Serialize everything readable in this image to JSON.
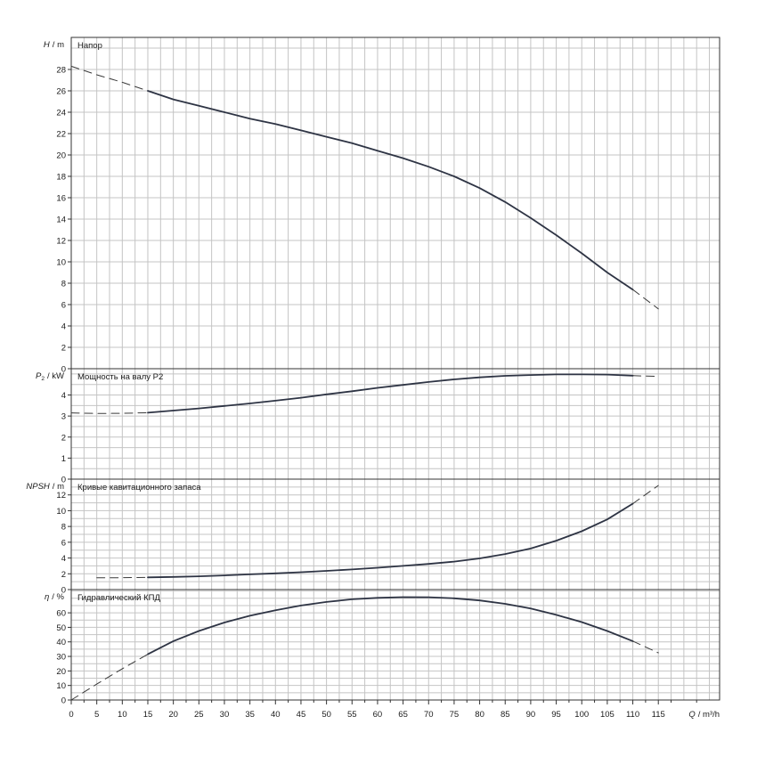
{
  "chart_data": [
    {
      "type": "line",
      "title": "Напор",
      "ylabel_symbol": "H",
      "ylabel_unit": "/ m",
      "ylim": [
        0,
        31
      ],
      "yticks": [
        "0",
        "2",
        "4",
        "6",
        "8",
        "10",
        "12",
        "14",
        "16",
        "18",
        "20",
        "22",
        "24",
        "26",
        "28"
      ],
      "ytick_values": [
        0,
        2,
        4,
        6,
        8,
        10,
        12,
        14,
        16,
        18,
        20,
        22,
        24,
        26,
        28
      ],
      "grid": true,
      "series": [
        {
          "style": "dashed",
          "x": [
            0,
            5,
            10,
            15
          ],
          "y": [
            28.3,
            27.5,
            26.8,
            26.0
          ]
        },
        {
          "style": "solid",
          "x": [
            15,
            20,
            25,
            30,
            35,
            40,
            45,
            50,
            55,
            60,
            65,
            70,
            75,
            80,
            85,
            90,
            95,
            100,
            105,
            110
          ],
          "y": [
            26.0,
            25.2,
            24.6,
            24.0,
            23.4,
            22.9,
            22.3,
            21.7,
            21.1,
            20.4,
            19.7,
            18.9,
            18.0,
            16.9,
            15.6,
            14.1,
            12.5,
            10.8,
            9.0,
            7.4
          ]
        },
        {
          "style": "dashed",
          "x": [
            110,
            115
          ],
          "y": [
            7.4,
            5.6
          ]
        }
      ]
    },
    {
      "type": "line",
      "title": "Мощность на валу P2",
      "ylabel_symbol": "P",
      "ylabel_subscript": "2",
      "ylabel_unit": "/ kW",
      "ylim": [
        0,
        5.25
      ],
      "yticks": [
        "0",
        "1",
        "2",
        "3",
        "4"
      ],
      "ytick_values": [
        0,
        1,
        2,
        3,
        4
      ],
      "grid": true,
      "series": [
        {
          "style": "dashed",
          "x": [
            0,
            5,
            10,
            15
          ],
          "y": [
            3.15,
            3.12,
            3.13,
            3.16
          ]
        },
        {
          "style": "solid",
          "x": [
            15,
            20,
            25,
            30,
            35,
            40,
            45,
            50,
            55,
            60,
            65,
            70,
            75,
            80,
            85,
            90,
            95,
            100,
            105,
            110
          ],
          "y": [
            3.16,
            3.26,
            3.36,
            3.48,
            3.6,
            3.73,
            3.87,
            4.03,
            4.18,
            4.34,
            4.48,
            4.62,
            4.74,
            4.84,
            4.91,
            4.95,
            4.98,
            4.98,
            4.97,
            4.92
          ]
        },
        {
          "style": "dashed",
          "x": [
            110,
            115
          ],
          "y": [
            4.92,
            4.88
          ]
        }
      ]
    },
    {
      "type": "line",
      "title": "Кривые кавитационного запаса",
      "ylabel_symbol": "NPSH",
      "ylabel_unit": "/ m",
      "ylim": [
        0,
        14
      ],
      "yticks": [
        "0",
        "2",
        "4",
        "6",
        "8",
        "10",
        "12"
      ],
      "ytick_values": [
        0,
        2,
        4,
        6,
        8,
        10,
        12
      ],
      "grid": true,
      "series": [
        {
          "style": "dashed",
          "x": [
            5,
            10,
            15
          ],
          "y": [
            1.5,
            1.5,
            1.55
          ]
        },
        {
          "style": "solid",
          "x": [
            15,
            20,
            25,
            30,
            35,
            40,
            45,
            50,
            55,
            60,
            65,
            70,
            75,
            80,
            85,
            90,
            95,
            100,
            105,
            110
          ],
          "y": [
            1.55,
            1.6,
            1.68,
            1.8,
            1.93,
            2.05,
            2.2,
            2.37,
            2.55,
            2.77,
            3.0,
            3.25,
            3.55,
            3.95,
            4.5,
            5.2,
            6.2,
            7.4,
            8.9,
            10.9
          ]
        },
        {
          "style": "dashed",
          "x": [
            110,
            115
          ],
          "y": [
            10.9,
            13.2
          ]
        }
      ]
    },
    {
      "type": "line",
      "title": "Гидравлический КПД",
      "ylabel_symbol": "η",
      "ylabel_unit": "/ %",
      "xlabel_symbol": "Q",
      "xlabel_unit": "/ m³/h",
      "ylim": [
        0,
        76
      ],
      "xlim": [
        0,
        127
      ],
      "yticks": [
        "0",
        "10",
        "20",
        "30",
        "40",
        "50",
        "60"
      ],
      "ytick_values": [
        0,
        10,
        20,
        30,
        40,
        50,
        60
      ],
      "xticks": [
        "0",
        "5",
        "10",
        "15",
        "20",
        "25",
        "30",
        "35",
        "40",
        "45",
        "50",
        "55",
        "60",
        "65",
        "70",
        "75",
        "80",
        "85",
        "90",
        "95",
        "100",
        "105",
        "110",
        "115"
      ],
      "xtick_values": [
        0,
        5,
        10,
        15,
        20,
        25,
        30,
        35,
        40,
        45,
        50,
        55,
        60,
        65,
        70,
        75,
        80,
        85,
        90,
        95,
        100,
        105,
        110,
        115
      ],
      "grid": true,
      "series": [
        {
          "style": "dashed",
          "x": [
            0,
            5,
            10,
            15
          ],
          "y": [
            0,
            11,
            21.5,
            31.5
          ]
        },
        {
          "style": "solid",
          "x": [
            15,
            20,
            25,
            30,
            35,
            40,
            45,
            50,
            55,
            60,
            65,
            70,
            75,
            80,
            85,
            90,
            95,
            100,
            105,
            110
          ],
          "y": [
            31.5,
            40.5,
            47.5,
            53.3,
            58.0,
            61.8,
            65.0,
            67.5,
            69.3,
            70.3,
            70.8,
            70.7,
            70.0,
            68.5,
            66.2,
            63.0,
            58.6,
            53.6,
            47.5,
            40.5
          ]
        },
        {
          "style": "dashed",
          "x": [
            110,
            115
          ],
          "y": [
            40.5,
            32.5
          ]
        }
      ]
    }
  ]
}
